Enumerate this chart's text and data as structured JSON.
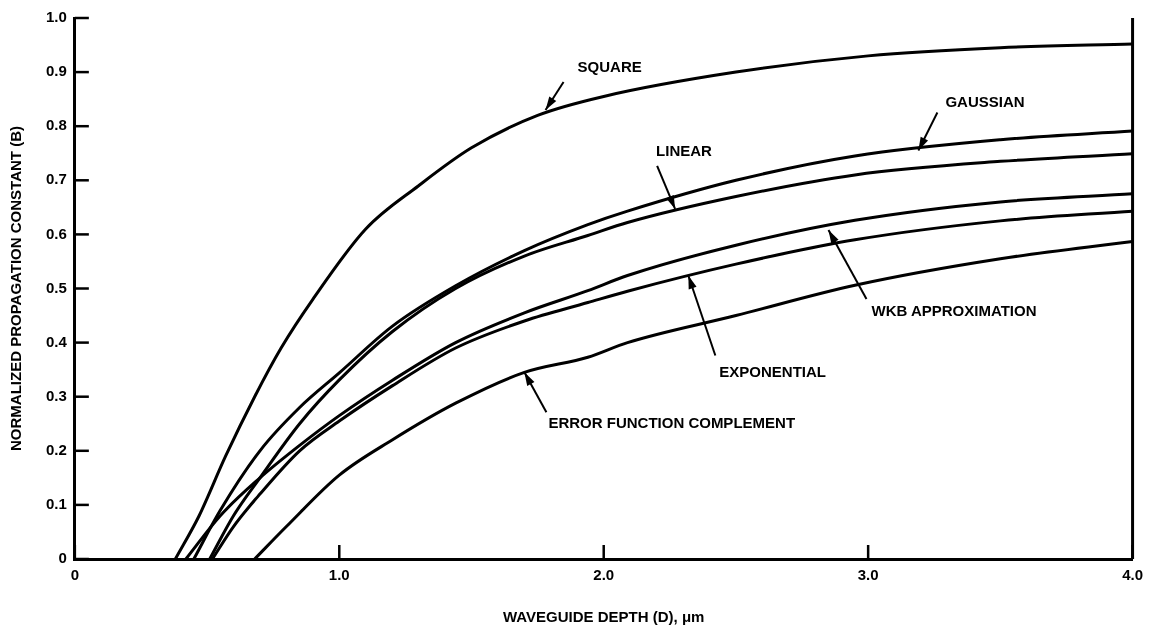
{
  "chart_data": {
    "type": "line",
    "xlabel": "WAVEGUIDE DEPTH (D), μm",
    "ylabel": "NORMALIZED PROPAGATION CONSTANT (B)",
    "xlim": [
      0,
      4
    ],
    "ylim": [
      0,
      1
    ],
    "xticks": [
      0,
      {
        "value": 1,
        "label": "1.0"
      },
      {
        "value": 2,
        "label": "2.0"
      },
      {
        "value": 3,
        "label": "3.0"
      },
      {
        "value": 4,
        "label": "4.0"
      }
    ],
    "yticks": [
      0,
      0.1,
      0.2,
      0.3,
      0.4,
      0.5,
      0.6,
      0.7,
      0.8,
      0.9,
      {
        "value": 1,
        "label": "1.0"
      }
    ],
    "grid": false,
    "legend": false,
    "marker": "none",
    "line_style": "solid",
    "series": [
      {
        "color": "#000000",
        "x": [
          0.38,
          0.47,
          0.57,
          0.68,
          0.78,
          0.9,
          1.1,
          1.3,
          1.5,
          1.75,
          2.0,
          2.5,
          3.0,
          3.5,
          4.0
        ],
        "values": [
          0,
          0.08,
          0.19,
          0.3,
          0.39,
          0.48,
          0.61,
          0.69,
          0.76,
          0.82,
          0.855,
          0.9,
          0.93,
          0.945,
          0.952
        ]
      },
      {
        "color": "#000000",
        "x": [
          0.45,
          0.55,
          0.7,
          0.85,
          1.0,
          1.2,
          1.44,
          1.7,
          1.94,
          2.09,
          2.5,
          2.95,
          3.5,
          4.0
        ],
        "values": [
          0,
          0.09,
          0.2,
          0.28,
          0.344,
          0.43,
          0.505,
          0.57,
          0.618,
          0.643,
          0.7,
          0.745,
          0.775,
          0.791
        ]
      },
      {
        "color": "#000000",
        "x": [
          0.51,
          0.6,
          0.7,
          0.85,
          1.0,
          1.2,
          1.44,
          1.7,
          1.94,
          2.09,
          2.5,
          2.95,
          3.5,
          4.0
        ],
        "values": [
          0,
          0.08,
          0.15,
          0.25,
          0.331,
          0.42,
          0.5,
          0.56,
          0.598,
          0.622,
          0.67,
          0.71,
          0.735,
          0.749
        ]
      },
      {
        "color": "#000000",
        "x": [
          0.42,
          0.55,
          0.7,
          0.85,
          1.0,
          1.2,
          1.44,
          1.7,
          1.94,
          2.09,
          2.5,
          2.95,
          3.5,
          4.0
        ],
        "values": [
          0,
          0.08,
          0.15,
          0.21,
          0.265,
          0.33,
          0.4,
          0.455,
          0.496,
          0.524,
          0.58,
          0.626,
          0.66,
          0.675
        ]
      },
      {
        "color": "#000000",
        "x": [
          0.52,
          0.6,
          0.7,
          0.85,
          1.0,
          1.2,
          1.44,
          1.7,
          1.94,
          2.09,
          2.5,
          2.95,
          3.5,
          4.0
        ],
        "values": [
          0,
          0.06,
          0.12,
          0.2,
          0.255,
          0.32,
          0.39,
          0.44,
          0.474,
          0.495,
          0.545,
          0.59,
          0.625,
          0.643
        ]
      },
      {
        "color": "#000000",
        "x": [
          0.68,
          0.8,
          1.0,
          1.2,
          1.44,
          1.7,
          1.94,
          2.09,
          2.5,
          2.95,
          3.5,
          4.0
        ],
        "values": [
          0,
          0.06,
          0.155,
          0.22,
          0.288,
          0.345,
          0.373,
          0.4,
          0.45,
          0.506,
          0.555,
          0.587
        ]
      }
    ],
    "annotations": [
      {
        "text": "SQUARE",
        "x": 1.78,
        "y": 0.83
      },
      {
        "text": "GAUSSIAN",
        "x": 3.19,
        "y": 0.755
      },
      {
        "text": "LINEAR",
        "x": 2.27,
        "y": 0.647
      },
      {
        "text": "WKB APPROXIMATION",
        "x": 2.85,
        "y": 0.608
      },
      {
        "text": "EXPONENTIAL",
        "x": 2.32,
        "y": 0.524
      },
      {
        "text": "ERROR FUNCTION COMPLEMENT",
        "x": 1.7,
        "y": 0.345
      }
    ]
  }
}
